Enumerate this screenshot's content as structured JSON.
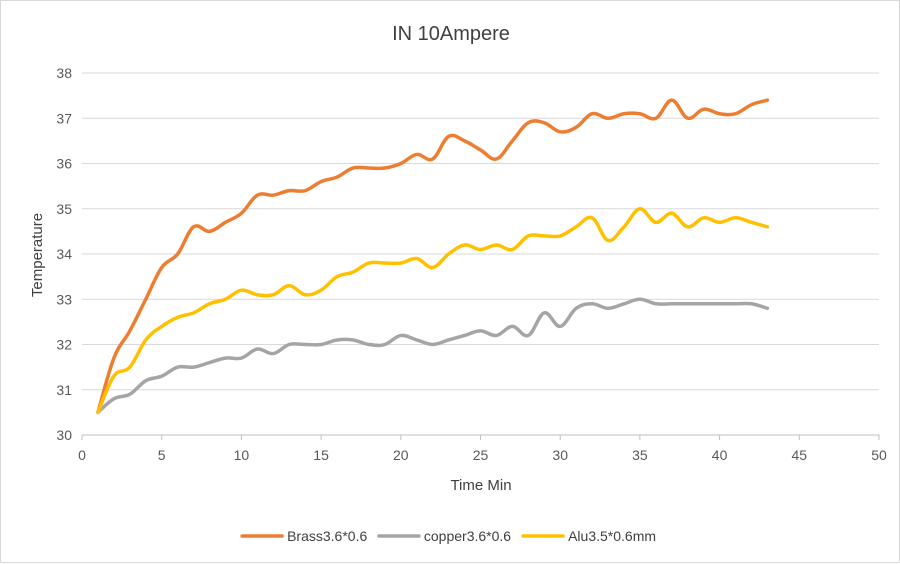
{
  "chart_data": {
    "type": "line",
    "title": "IN 10Ampere",
    "xlabel": "Time Min",
    "ylabel": "Temperature",
    "xlim": [
      0,
      50
    ],
    "ylim": [
      30,
      38
    ],
    "xticks": [
      0,
      5,
      10,
      15,
      20,
      25,
      30,
      35,
      40,
      45,
      50
    ],
    "yticks": [
      30,
      31,
      32,
      33,
      34,
      35,
      36,
      37,
      38
    ],
    "grid": "horizontal",
    "legend_position": "bottom",
    "x": [
      1,
      2,
      3,
      4,
      5,
      6,
      7,
      8,
      9,
      10,
      11,
      12,
      13,
      14,
      15,
      16,
      17,
      18,
      19,
      20,
      21,
      22,
      23,
      24,
      25,
      26,
      27,
      28,
      29,
      30,
      31,
      32,
      33,
      34,
      35,
      36,
      37,
      38,
      39,
      40,
      41,
      42,
      43
    ],
    "series": [
      {
        "name": "Brass3.6*0.6",
        "color": "#ED7D31",
        "values": [
          30.5,
          31.7,
          32.3,
          33.0,
          33.7,
          34.0,
          34.6,
          34.5,
          34.7,
          34.9,
          35.3,
          35.3,
          35.4,
          35.4,
          35.6,
          35.7,
          35.9,
          35.9,
          35.9,
          36.0,
          36.2,
          36.1,
          36.6,
          36.5,
          36.3,
          36.1,
          36.5,
          36.9,
          36.9,
          36.7,
          36.8,
          37.1,
          37.0,
          37.1,
          37.1,
          37.0,
          37.4,
          37.0,
          37.2,
          37.1,
          37.1,
          37.3,
          37.4
        ]
      },
      {
        "name": "copper3.6*0.6",
        "color": "#A5A5A5",
        "values": [
          30.5,
          30.8,
          30.9,
          31.2,
          31.3,
          31.5,
          31.5,
          31.6,
          31.7,
          31.7,
          31.9,
          31.8,
          32.0,
          32.0,
          32.0,
          32.1,
          32.1,
          32.0,
          32.0,
          32.2,
          32.1,
          32.0,
          32.1,
          32.2,
          32.3,
          32.2,
          32.4,
          32.2,
          32.7,
          32.4,
          32.8,
          32.9,
          32.8,
          32.9,
          33.0,
          32.9,
          32.9,
          32.9,
          32.9,
          32.9,
          32.9,
          32.9,
          32.8
        ]
      },
      {
        "name": "Alu3.5*0.6mm",
        "color": "#FFC000",
        "values": [
          30.5,
          31.3,
          31.5,
          32.1,
          32.4,
          32.6,
          32.7,
          32.9,
          33.0,
          33.2,
          33.1,
          33.1,
          33.3,
          33.1,
          33.2,
          33.5,
          33.6,
          33.8,
          33.8,
          33.8,
          33.9,
          33.7,
          34.0,
          34.2,
          34.1,
          34.2,
          34.1,
          34.4,
          34.4,
          34.4,
          34.6,
          34.8,
          34.3,
          34.6,
          35.0,
          34.7,
          34.9,
          34.6,
          34.8,
          34.7,
          34.8,
          34.7,
          34.6
        ]
      }
    ]
  }
}
